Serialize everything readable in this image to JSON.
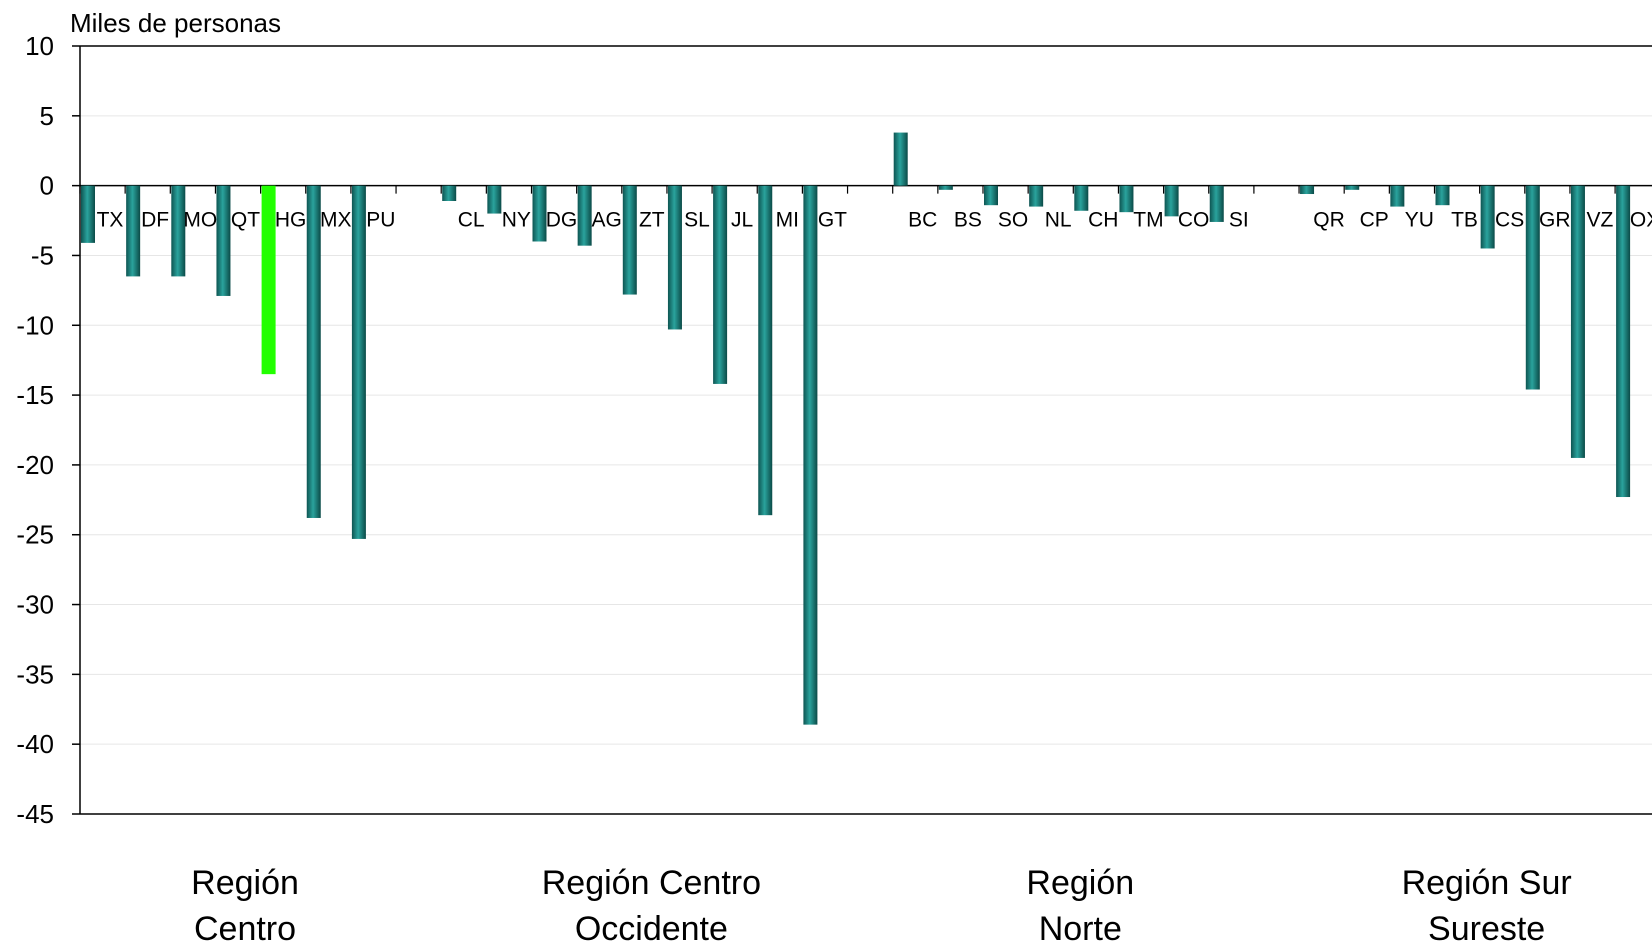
{
  "chart_data": {
    "type": "bar",
    "ylabel": "Miles de personas",
    "ylim": [
      -45,
      10
    ],
    "yticks": [
      10,
      5,
      0,
      -5,
      -10,
      -15,
      -20,
      -25,
      -30,
      -35,
      -40,
      -45
    ],
    "grid": true,
    "legend": "none",
    "colors": {
      "bar": "#1f8a85",
      "highlight": "#22ff00"
    },
    "groups": [
      {
        "name": "Región Centro",
        "name_lines": [
          "Región",
          "Centro"
        ],
        "categories": [
          "TX",
          "DF",
          "MO",
          "QT",
          "HG",
          "MX",
          "PU"
        ],
        "values": [
          -4.1,
          -6.5,
          -6.5,
          -7.9,
          -13.5,
          -23.8,
          -25.3
        ]
      },
      {
        "name": "Región Centro Occidente",
        "name_lines": [
          "Región Centro",
          "Occidente"
        ],
        "categories": [
          "CL",
          "NY",
          "DG",
          "AG",
          "ZT",
          "SL",
          "JL",
          "MI",
          "GT"
        ],
        "values": [
          -1.1,
          -2.0,
          -4.0,
          -4.3,
          -7.8,
          -10.3,
          -14.2,
          -23.6,
          -38.6
        ]
      },
      {
        "name": "Región Norte",
        "name_lines": [
          "Región",
          "Norte"
        ],
        "categories": [
          "BC",
          "BS",
          "SO",
          "NL",
          "CH",
          "TM",
          "CO",
          "SI"
        ],
        "values": [
          3.8,
          -0.3,
          -1.4,
          -1.5,
          -1.8,
          -1.9,
          -2.2,
          -2.6
        ]
      },
      {
        "name": "Región Sur Sureste",
        "name_lines": [
          "Región Sur",
          "Sureste"
        ],
        "categories": [
          "QR",
          "CP",
          "YU",
          "TB",
          "CS",
          "GR",
          "VZ",
          "OX"
        ],
        "values": [
          -0.6,
          -0.3,
          -1.5,
          -1.4,
          -4.5,
          -14.6,
          -19.5,
          -22.3
        ]
      }
    ],
    "highlight_category": "HG"
  }
}
